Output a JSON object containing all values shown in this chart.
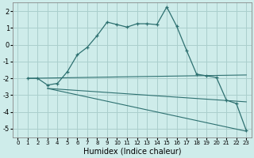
{
  "xlabel": "Humidex (Indice chaleur)",
  "bg_color": "#ceecea",
  "grid_color": "#aacfcd",
  "line_color": "#2d7070",
  "xlim": [
    -0.5,
    23.5
  ],
  "ylim": [
    -5.5,
    2.5
  ],
  "yticks": [
    -5,
    -4,
    -3,
    -2,
    -1,
    0,
    1,
    2
  ],
  "xticks": [
    0,
    1,
    2,
    3,
    4,
    5,
    6,
    7,
    8,
    9,
    10,
    11,
    12,
    13,
    14,
    15,
    16,
    17,
    18,
    19,
    20,
    21,
    22,
    23
  ],
  "series": [
    {
      "x": [
        1,
        2,
        3,
        4,
        5,
        6,
        7,
        8,
        9,
        10,
        11,
        12,
        13,
        14,
        15,
        16,
        17,
        18,
        19,
        20,
        21,
        22,
        23
      ],
      "y": [
        -2.0,
        -2.0,
        -2.4,
        -2.3,
        -1.6,
        -0.6,
        -0.15,
        0.55,
        1.35,
        1.2,
        1.05,
        1.25,
        1.25,
        1.2,
        2.25,
        1.1,
        -0.35,
        -1.75,
        -1.85,
        -1.95,
        -3.3,
        -3.5,
        -5.1
      ],
      "marker": "+"
    },
    {
      "x": [
        1,
        23
      ],
      "y": [
        -2.0,
        -1.8
      ],
      "marker": null
    },
    {
      "x": [
        3,
        23
      ],
      "y": [
        -2.6,
        -3.4
      ],
      "marker": null
    },
    {
      "x": [
        3,
        23
      ],
      "y": [
        -2.6,
        -5.15
      ],
      "marker": null
    }
  ]
}
